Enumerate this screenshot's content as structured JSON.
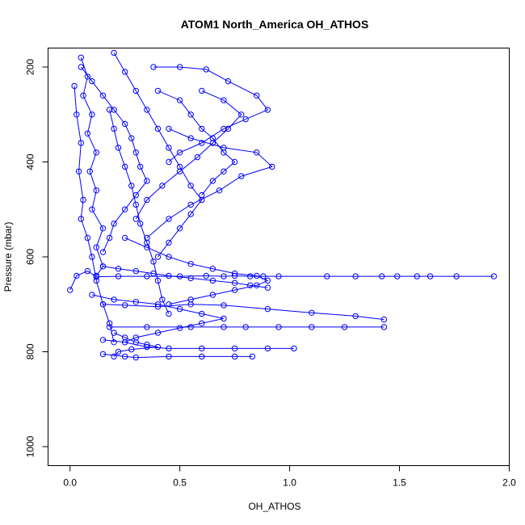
{
  "chart_data": {
    "type": "scatter",
    "title": "ATOM1 North_America OH_ATHOS",
    "xlabel": "OH_ATHOS",
    "ylabel": "Pressure (mbar)",
    "xlim": [
      -0.1,
      2.0
    ],
    "ylim": [
      1040,
      160
    ],
    "y_reversed": true,
    "xticks": [
      0.0,
      0.5,
      1.0,
      1.5,
      2.0
    ],
    "xtick_labels": [
      "0.0",
      "0.5",
      "1.0",
      "1.5",
      "2.0"
    ],
    "yticks": [
      200,
      400,
      600,
      800,
      1000
    ],
    "ytick_labels": [
      "200",
      "400",
      "600",
      "800",
      "1000"
    ],
    "grid": false,
    "legend": "none",
    "marker": "open-circle",
    "connected": true,
    "color": "#0000ff",
    "series": [
      {
        "points": [
          [
            0.0,
            670
          ],
          [
            0.03,
            640
          ],
          [
            0.08,
            630
          ],
          [
            0.12,
            642
          ],
          [
            0.22,
            641
          ],
          [
            0.35,
            641
          ],
          [
            0.5,
            641
          ],
          [
            0.62,
            640
          ],
          [
            0.7,
            641
          ],
          [
            0.75,
            640
          ],
          [
            0.82,
            641
          ],
          [
            0.88,
            641
          ],
          [
            0.95,
            641
          ],
          [
            1.17,
            641
          ],
          [
            1.3,
            641
          ],
          [
            1.42,
            641
          ],
          [
            1.49,
            641
          ],
          [
            1.58,
            641
          ],
          [
            1.64,
            641
          ],
          [
            1.76,
            641
          ],
          [
            1.93,
            641
          ]
        ]
      },
      {
        "points": [
          [
            0.15,
            700
          ],
          [
            0.25,
            702
          ],
          [
            0.4,
            705
          ],
          [
            0.55,
            700
          ],
          [
            0.7,
            702
          ],
          [
            0.9,
            710
          ],
          [
            1.1,
            718
          ],
          [
            1.3,
            725
          ],
          [
            1.43,
            732
          ]
        ]
      },
      {
        "points": [
          [
            0.18,
            748
          ],
          [
            0.35,
            748
          ],
          [
            0.55,
            748
          ],
          [
            0.7,
            748
          ],
          [
            0.8,
            748
          ],
          [
            0.95,
            748
          ],
          [
            1.1,
            748
          ],
          [
            1.25,
            748
          ],
          [
            1.43,
            748
          ]
        ]
      },
      {
        "points": [
          [
            0.15,
            775
          ],
          [
            0.25,
            780
          ],
          [
            0.35,
            790
          ],
          [
            0.45,
            793
          ],
          [
            0.6,
            793
          ],
          [
            0.75,
            793
          ],
          [
            0.9,
            793
          ],
          [
            1.02,
            793
          ]
        ]
      },
      {
        "points": [
          [
            0.15,
            805
          ],
          [
            0.25,
            810
          ],
          [
            0.3,
            812
          ],
          [
            0.45,
            810
          ],
          [
            0.6,
            810
          ],
          [
            0.75,
            810
          ],
          [
            0.83,
            810
          ]
        ]
      },
      {
        "points": [
          [
            0.05,
            180
          ],
          [
            0.08,
            220
          ],
          [
            0.06,
            260
          ],
          [
            0.1,
            300
          ],
          [
            0.08,
            340
          ],
          [
            0.12,
            380
          ],
          [
            0.09,
            420
          ],
          [
            0.12,
            460
          ],
          [
            0.1,
            500
          ],
          [
            0.15,
            540
          ],
          [
            0.12,
            580
          ],
          [
            0.15,
            620
          ],
          [
            0.12,
            640
          ]
        ]
      },
      {
        "points": [
          [
            0.2,
            170
          ],
          [
            0.25,
            210
          ],
          [
            0.3,
            250
          ],
          [
            0.35,
            290
          ],
          [
            0.4,
            330
          ],
          [
            0.45,
            370
          ],
          [
            0.5,
            410
          ],
          [
            0.55,
            450
          ],
          [
            0.6,
            480
          ],
          [
            0.55,
            510
          ],
          [
            0.5,
            540
          ],
          [
            0.45,
            570
          ],
          [
            0.4,
            600
          ]
        ]
      },
      {
        "points": [
          [
            0.38,
            200
          ],
          [
            0.5,
            200
          ],
          [
            0.62,
            205
          ],
          [
            0.72,
            230
          ],
          [
            0.85,
            260
          ],
          [
            0.9,
            290
          ],
          [
            0.8,
            310
          ],
          [
            0.7,
            330
          ],
          [
            0.6,
            360
          ],
          [
            0.5,
            380
          ],
          [
            0.45,
            400
          ]
        ]
      },
      {
        "points": [
          [
            0.45,
            330
          ],
          [
            0.55,
            350
          ],
          [
            0.7,
            370
          ],
          [
            0.85,
            380
          ],
          [
            0.92,
            410
          ],
          [
            0.78,
            430
          ],
          [
            0.68,
            460
          ],
          [
            0.55,
            490
          ],
          [
            0.45,
            520
          ],
          [
            0.35,
            560
          ]
        ]
      },
      {
        "points": [
          [
            0.02,
            240
          ],
          [
            0.03,
            300
          ],
          [
            0.05,
            360
          ],
          [
            0.04,
            420
          ],
          [
            0.06,
            480
          ],
          [
            0.05,
            520
          ],
          [
            0.08,
            560
          ],
          [
            0.1,
            600
          ],
          [
            0.12,
            650
          ],
          [
            0.15,
            700
          ],
          [
            0.18,
            740
          ],
          [
            0.2,
            780
          ]
        ]
      },
      {
        "points": [
          [
            0.18,
            290
          ],
          [
            0.2,
            330
          ],
          [
            0.22,
            370
          ],
          [
            0.25,
            410
          ],
          [
            0.28,
            450
          ],
          [
            0.3,
            490
          ],
          [
            0.32,
            530
          ],
          [
            0.35,
            570
          ],
          [
            0.38,
            610
          ],
          [
            0.4,
            650
          ],
          [
            0.42,
            690
          ],
          [
            0.45,
            720
          ]
        ]
      },
      {
        "points": [
          [
            0.6,
            250
          ],
          [
            0.7,
            270
          ],
          [
            0.78,
            300
          ],
          [
            0.72,
            330
          ],
          [
            0.65,
            360
          ],
          [
            0.58,
            390
          ],
          [
            0.5,
            420
          ],
          [
            0.42,
            450
          ],
          [
            0.35,
            480
          ],
          [
            0.3,
            520
          ]
        ]
      },
      {
        "points": [
          [
            0.25,
            560
          ],
          [
            0.35,
            580
          ],
          [
            0.45,
            600
          ],
          [
            0.55,
            615
          ],
          [
            0.65,
            625
          ],
          [
            0.75,
            635
          ],
          [
            0.85,
            640
          ],
          [
            0.9,
            650
          ],
          [
            0.85,
            660
          ],
          [
            0.75,
            670
          ],
          [
            0.65,
            680
          ],
          [
            0.55,
            690
          ],
          [
            0.45,
            700
          ]
        ]
      },
      {
        "points": [
          [
            0.1,
            680
          ],
          [
            0.2,
            690
          ],
          [
            0.3,
            695
          ],
          [
            0.4,
            700
          ],
          [
            0.5,
            710
          ],
          [
            0.6,
            720
          ],
          [
            0.7,
            730
          ],
          [
            0.6,
            740
          ],
          [
            0.5,
            750
          ],
          [
            0.4,
            760
          ],
          [
            0.3,
            770
          ],
          [
            0.25,
            780
          ]
        ]
      },
      {
        "points": [
          [
            0.05,
            200
          ],
          [
            0.1,
            230
          ],
          [
            0.15,
            260
          ],
          [
            0.2,
            290
          ],
          [
            0.25,
            320
          ],
          [
            0.28,
            350
          ],
          [
            0.3,
            380
          ],
          [
            0.32,
            410
          ],
          [
            0.35,
            440
          ],
          [
            0.3,
            470
          ],
          [
            0.25,
            500
          ],
          [
            0.2,
            530
          ],
          [
            0.18,
            560
          ],
          [
            0.15,
            590
          ]
        ]
      },
      {
        "points": [
          [
            0.2,
            760
          ],
          [
            0.25,
            770
          ],
          [
            0.3,
            780
          ],
          [
            0.35,
            785
          ],
          [
            0.4,
            790
          ],
          [
            0.28,
            795
          ],
          [
            0.22,
            800
          ],
          [
            0.2,
            810
          ]
        ]
      },
      {
        "points": [
          [
            0.4,
            250
          ],
          [
            0.5,
            270
          ],
          [
            0.55,
            300
          ],
          [
            0.6,
            330
          ],
          [
            0.65,
            350
          ],
          [
            0.7,
            380
          ],
          [
            0.75,
            400
          ],
          [
            0.7,
            420
          ],
          [
            0.65,
            440
          ],
          [
            0.6,
            470
          ]
        ]
      },
      {
        "points": [
          [
            0.15,
            620
          ],
          [
            0.22,
            625
          ],
          [
            0.3,
            630
          ],
          [
            0.38,
            635
          ],
          [
            0.45,
            640
          ],
          [
            0.55,
            645
          ],
          [
            0.65,
            650
          ],
          [
            0.75,
            655
          ],
          [
            0.82,
            660
          ],
          [
            0.9,
            665
          ]
        ]
      }
    ]
  }
}
